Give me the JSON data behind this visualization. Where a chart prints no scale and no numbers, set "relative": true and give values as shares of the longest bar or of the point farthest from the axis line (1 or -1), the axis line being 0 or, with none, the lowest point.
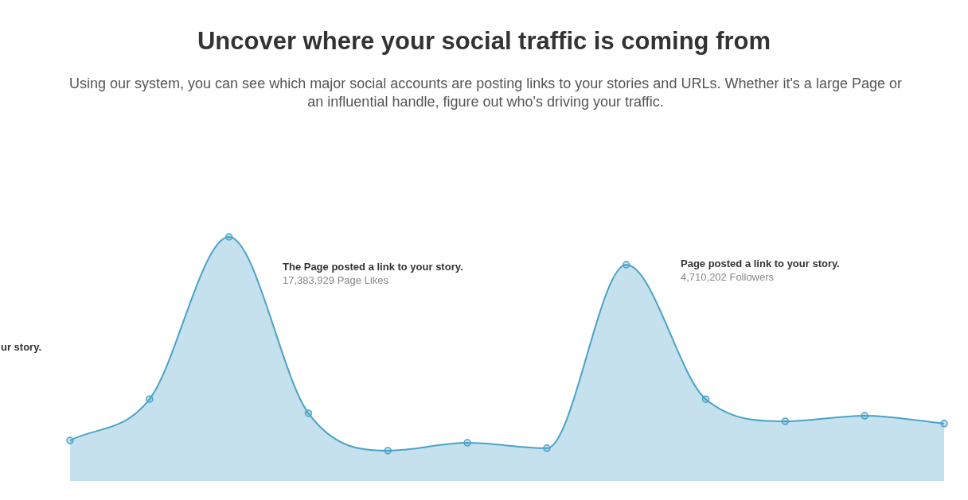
{
  "chart_data": {
    "type": "area",
    "relative": true,
    "title": "Uncover where your social traffic is coming from",
    "subtitle": "Using our system, you can see which major social accounts are posting links to your stories and URLs. Whether it's a large Page or an influential handle, figure out who's driving your traffic.",
    "categories": [
      null,
      null,
      null,
      null,
      null,
      null,
      null,
      null,
      null,
      null,
      null,
      null
    ],
    "series": [
      {
        "color": "#4aa3c6",
        "values": [
          0.166,
          0.335,
          1,
          0.277,
          0.124,
          0.156,
          0.134,
          0.886,
          0.335,
          0.244,
          0.267,
          0.235
        ]
      }
    ],
    "marker": "circle",
    "annotations": [
      "ur story.",
      "The Page posted a link to your story.",
      "17,383,929 Page Likes",
      "Page posted a link to your story.",
      "4,710,202 Followers"
    ]
  }
}
